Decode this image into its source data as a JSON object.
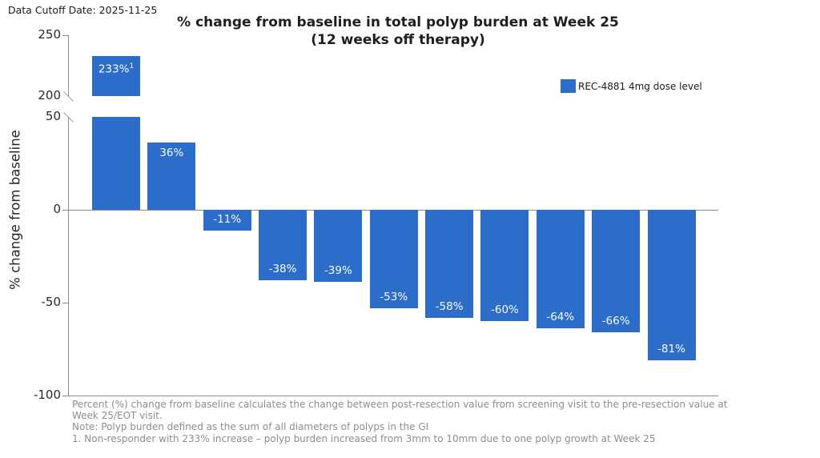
{
  "header": {
    "data_cutoff": "Data Cutoff Date: 2025-11-25"
  },
  "chart_data": {
    "type": "bar",
    "title": "% change from baseline in total polyp burden at Week 25",
    "subtitle": "(12 weeks off therapy)",
    "ylabel": "% change from baseline",
    "bar_color": "#2b6dc9",
    "label_color": "#fafbfd",
    "grid": false,
    "legend_position": "upper right",
    "legend": [
      {
        "label": "REC-4881 4mg dose level",
        "color": "#2b6dc9"
      }
    ],
    "bars": [
      {
        "value": 233,
        "label": "233%",
        "superscript": "1"
      },
      {
        "value": 36,
        "label": "36%",
        "superscript": ""
      },
      {
        "value": -11,
        "label": "-11%",
        "superscript": ""
      },
      {
        "value": -38,
        "label": "-38%",
        "superscript": ""
      },
      {
        "value": -39,
        "label": "-39%",
        "superscript": ""
      },
      {
        "value": -53,
        "label": "-53%",
        "superscript": ""
      },
      {
        "value": -58,
        "label": "-58%",
        "superscript": ""
      },
      {
        "value": -60,
        "label": "-60%",
        "superscript": ""
      },
      {
        "value": -64,
        "label": "-64%",
        "superscript": ""
      },
      {
        "value": -66,
        "label": "-66%",
        "superscript": ""
      },
      {
        "value": -81,
        "label": "-81%",
        "superscript": ""
      }
    ],
    "y_axis": {
      "broken": true,
      "segments": [
        {
          "range": [
            200,
            250
          ],
          "ticks": [
            {
              "value": 250,
              "label": "250",
              "mark": "tick"
            },
            {
              "value": 200,
              "label": "200",
              "mark": "break"
            }
          ]
        },
        {
          "range": [
            -100,
            50
          ],
          "ticks": [
            {
              "value": 50,
              "label": "50",
              "mark": "break"
            },
            {
              "value": 0,
              "label": "0",
              "mark": "tick"
            },
            {
              "value": -50,
              "label": "-50",
              "mark": "tick"
            },
            {
              "value": -100,
              "label": "-100",
              "mark": "tick"
            }
          ]
        }
      ],
      "zero_line": true
    }
  },
  "footnotes": {
    "lines": [
      "Percent (%) change from baseline calculates the change between post-resection value from screening visit to the pre-resection value at",
      "Week 25/EOT visit.",
      "Note: Polyp burden defined as the sum of all diameters of polyps in the GI",
      "1.   Non-responder with 233% increase – polyp burden increased from 3mm to 10mm due to one polyp growth at Week 25"
    ]
  }
}
